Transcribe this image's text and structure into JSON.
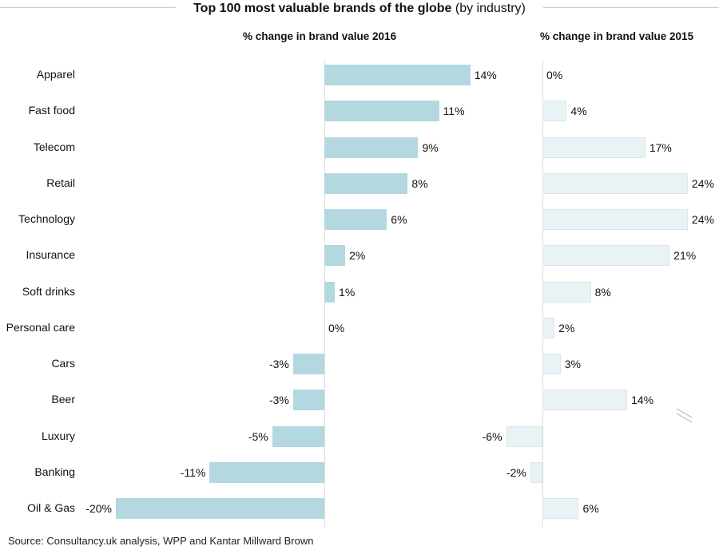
{
  "chart_data": {
    "type": "bar",
    "orientation": "horizontal",
    "title": "Top 100 most valuable brands of the globe",
    "title_suffix": "(by industry)",
    "categories": [
      "Apparel",
      "Fast food",
      "Telecom",
      "Retail",
      "Technology",
      "Insurance",
      "Soft drinks",
      "Personal care",
      "Cars",
      "Beer",
      "Luxury",
      "Banking",
      "Oil & Gas"
    ],
    "panels": [
      {
        "subtitle": "% change in brand value 2016",
        "values": [
          14,
          11,
          9,
          8,
          6,
          2,
          1,
          0,
          -3,
          -3,
          -5,
          -11,
          -20
        ],
        "color": "#b4d8df",
        "xlim": [
          -20,
          14
        ]
      },
      {
        "subtitle": "% change in brand value 2015",
        "values": [
          0,
          4,
          17,
          24,
          24,
          21,
          8,
          2,
          3,
          14,
          -6,
          -2,
          6
        ],
        "color": "#e9f2f4",
        "xlim": [
          -6,
          24
        ]
      }
    ],
    "value_suffix": "%",
    "grid": false,
    "legend": "none"
  },
  "source": "Source: Consultancy.uk analysis, WPP and Kantar Millward Brown"
}
